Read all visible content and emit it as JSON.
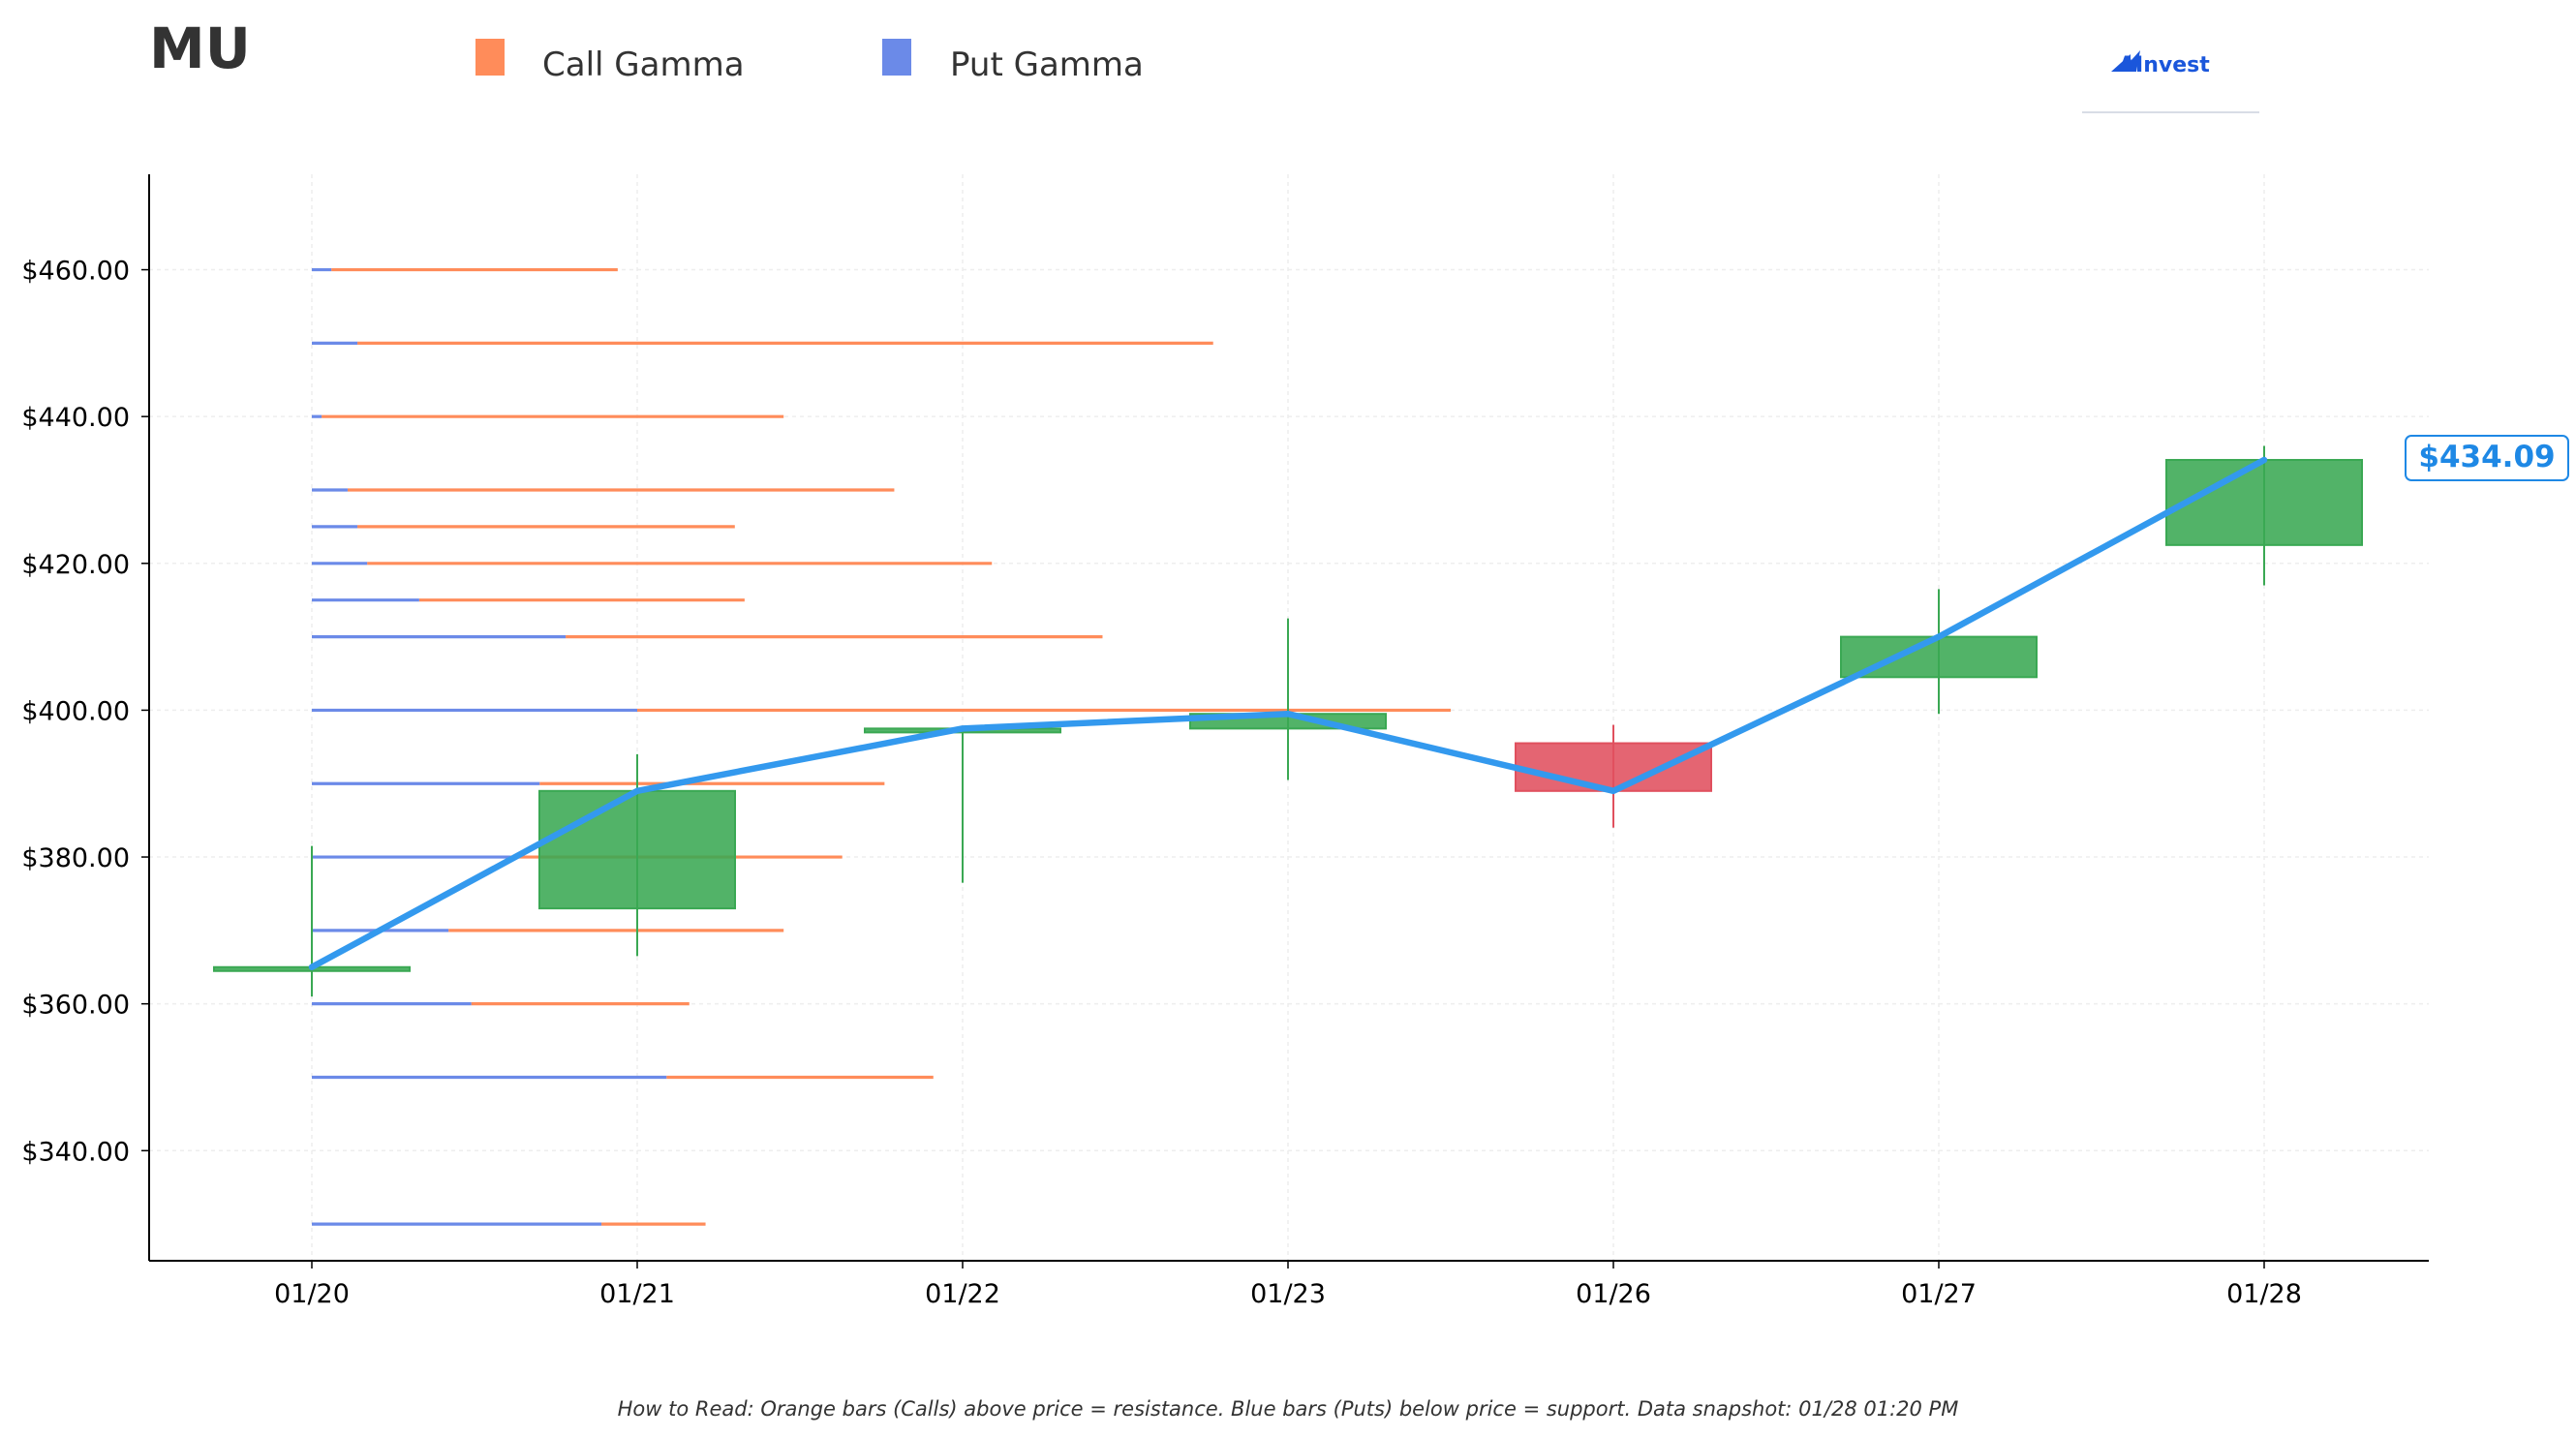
{
  "title": "MU",
  "legend": {
    "call_label": "Call Gamma",
    "put_label": "Put Gamma"
  },
  "brand": {
    "name": "AInvest",
    "logo_icon": "ainvest-logo-icon"
  },
  "footnote": "How to Read: Orange bars (Calls) above price = resistance. Blue bars (Puts) below price = support. Data snapshot: 01/28 01:20 PM",
  "last_price_label": "$434.09",
  "colors": {
    "call": "#ff8c5a",
    "put": "#6b8ae8",
    "up": "#3aa853",
    "down": "#e0505e",
    "line": "#3399ee",
    "price_label": "#1e88e5",
    "grid": "#eeeeee"
  },
  "chart_data": {
    "type": "candlestick",
    "title": "MU",
    "xlabel": "",
    "ylabel": "",
    "ylim": [
      325,
      473
    ],
    "y_ticks": [
      340,
      360,
      380,
      400,
      420,
      440,
      460
    ],
    "y_tick_labels": [
      "$340.00",
      "$360.00",
      "$380.00",
      "$400.00",
      "$420.00",
      "$440.00",
      "$460.00"
    ],
    "grid": true,
    "legend_placement": "top-left",
    "categories": [
      "01/20",
      "01/21",
      "01/22",
      "01/23",
      "01/26",
      "01/27",
      "01/28"
    ],
    "candles": [
      {
        "date": "01/20",
        "open": 365.0,
        "high": 381.5,
        "low": 361.0,
        "close": 365.0
      },
      {
        "date": "01/21",
        "open": 373.0,
        "high": 394.0,
        "low": 366.5,
        "close": 389.0
      },
      {
        "date": "01/22",
        "open": 397.0,
        "high": 397.5,
        "low": 376.5,
        "close": 397.5
      },
      {
        "date": "01/23",
        "open": 397.5,
        "high": 412.5,
        "low": 390.5,
        "close": 399.5
      },
      {
        "date": "01/26",
        "open": 395.5,
        "high": 398.0,
        "low": 384.0,
        "close": 389.0
      },
      {
        "date": "01/27",
        "open": 404.5,
        "high": 416.5,
        "low": 399.5,
        "close": 410.0
      },
      {
        "date": "01/28",
        "open": 422.5,
        "high": 436.0,
        "low": 417.0,
        "close": 434.09
      }
    ],
    "close_line": {
      "x": [
        "01/20",
        "01/21",
        "01/22",
        "01/23",
        "01/26",
        "01/27",
        "01/28"
      ],
      "y": [
        365.0,
        389.0,
        397.5,
        399.5,
        389.0,
        410.0,
        434.09
      ]
    },
    "gamma": {
      "strikes": [
        460,
        450,
        440,
        430,
        425,
        420,
        415,
        410,
        400,
        390,
        380,
        370,
        360,
        350,
        330
      ],
      "put_values": [
        0.06,
        0.14,
        0.03,
        0.11,
        0.14,
        0.17,
        0.33,
        0.78,
        1.0,
        0.7,
        0.61,
        0.42,
        0.49,
        1.09,
        0.89
      ],
      "call_values": [
        0.88,
        2.63,
        1.42,
        1.68,
        1.16,
        1.92,
        1.0,
        1.65,
        2.5,
        1.06,
        1.02,
        1.03,
        0.67,
        0.82,
        0.32
      ]
    },
    "last_price": 434.09
  }
}
